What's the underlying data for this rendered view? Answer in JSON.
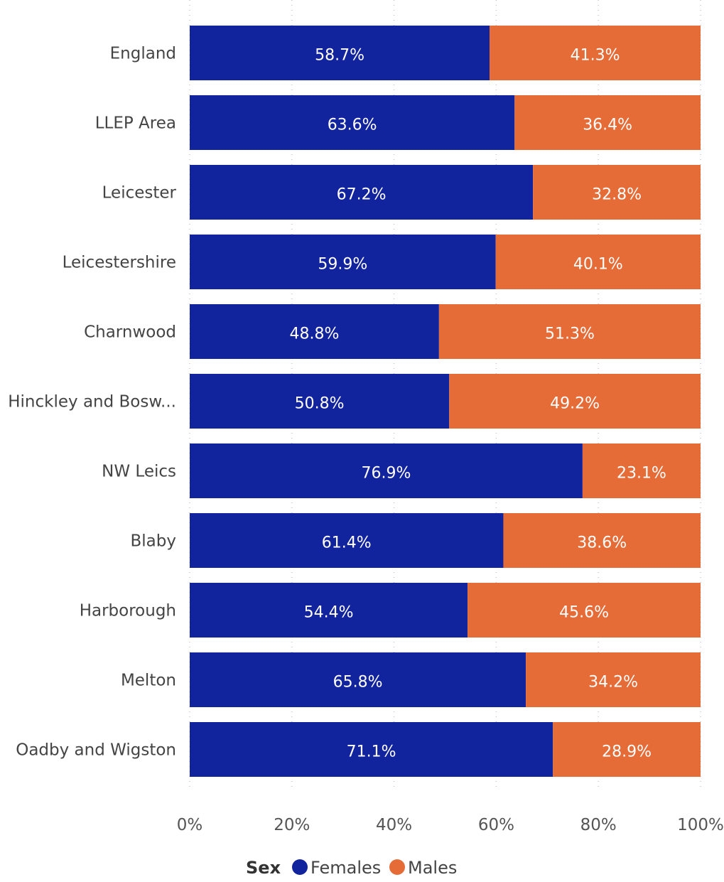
{
  "chart_data": {
    "type": "bar",
    "orientation": "horizontal",
    "stacked": true,
    "percent": true,
    "title": "",
    "xlabel": "",
    "ylabel": "",
    "xlim": [
      0,
      100
    ],
    "grid": true,
    "legend_placement": "bottom-center",
    "categories": [
      "England",
      "LLEP Area",
      "Leicester",
      "Leicestershire",
      "Charnwood",
      "Hinckley and Bosw...",
      "NW Leics",
      "Blaby",
      "Harborough",
      "Melton",
      "Oadby and Wigston"
    ],
    "series": [
      {
        "name": "Females",
        "color": "#12239e",
        "values": [
          58.7,
          63.6,
          67.2,
          59.9,
          48.8,
          50.8,
          76.9,
          61.4,
          54.4,
          65.8,
          71.1
        ],
        "labels": [
          "58.7%",
          "63.6%",
          "67.2%",
          "59.9%",
          "48.8%",
          "50.8%",
          "76.9%",
          "61.4%",
          "54.4%",
          "65.8%",
          "71.1%"
        ]
      },
      {
        "name": "Males",
        "color": "#e66c37",
        "values": [
          41.3,
          36.4,
          32.8,
          40.1,
          51.3,
          49.2,
          23.1,
          38.6,
          45.6,
          34.2,
          28.9
        ],
        "labels": [
          "41.3%",
          "36.4%",
          "32.8%",
          "40.1%",
          "51.3%",
          "49.2%",
          "23.1%",
          "38.6%",
          "45.6%",
          "34.2%",
          "28.9%"
        ]
      }
    ],
    "x_ticks": [
      0,
      20,
      40,
      60,
      80,
      100
    ],
    "x_tick_labels": [
      "0%",
      "20%",
      "40%",
      "60%",
      "80%",
      "100%"
    ],
    "legend": {
      "title": "Sex",
      "entries": [
        "Females",
        "Males"
      ]
    }
  }
}
